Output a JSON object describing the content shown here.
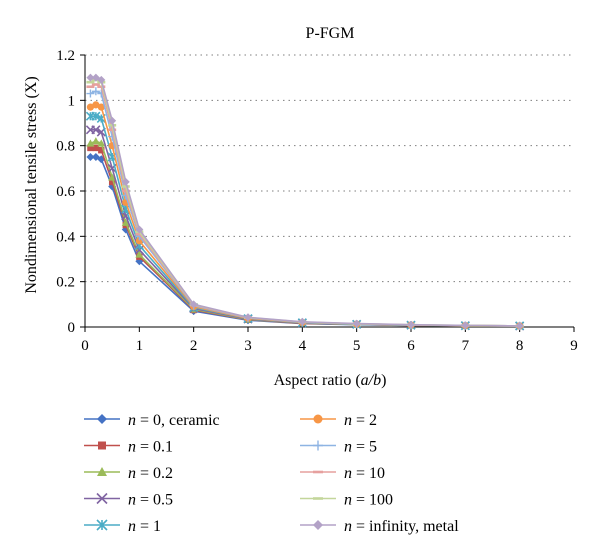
{
  "chart_data": {
    "type": "line",
    "title": "P-FGM",
    "xlabel_parts": [
      "Aspect ratio (",
      "a/b",
      ")"
    ],
    "ylabel": "Nondimensional tensile stress (X)",
    "xlim": [
      0,
      9
    ],
    "ylim": [
      0,
      1.2
    ],
    "xticks": [
      0,
      1,
      2,
      3,
      4,
      5,
      6,
      7,
      8,
      9
    ],
    "yticks": [
      0,
      0.2,
      0.4,
      0.6,
      0.8,
      1,
      1.2
    ],
    "xtick_labels": [
      "0",
      "1",
      "2",
      "3",
      "4",
      "5",
      "6",
      "7",
      "8",
      "9"
    ],
    "ytick_labels": [
      "0",
      "0.2",
      "0.4",
      "0.6",
      "0.8",
      "1",
      "1.2"
    ],
    "grid": "horizontal-dotted",
    "legend_position": "bottom",
    "x": [
      0.1,
      0.2,
      0.3,
      0.5,
      0.75,
      1,
      2,
      3,
      4,
      5,
      6,
      7,
      8
    ],
    "series": [
      {
        "name": "n = 0, ceramic",
        "italic_n": true,
        "suffix": " = 0, ceramic",
        "color": "#4472c4",
        "marker": "diamond",
        "values": [
          0.75,
          0.75,
          0.74,
          0.62,
          0.43,
          0.29,
          0.07,
          0.03,
          0.015,
          0.01,
          0.007,
          0.005,
          0.004
        ]
      },
      {
        "name": "n = 0.1",
        "italic_n": true,
        "suffix": " = 0.1",
        "color": "#c0504d",
        "marker": "square",
        "values": [
          0.79,
          0.79,
          0.78,
          0.64,
          0.45,
          0.31,
          0.075,
          0.032,
          0.016,
          0.011,
          0.007,
          0.005,
          0.004
        ]
      },
      {
        "name": "n = 0.2",
        "italic_n": true,
        "suffix": " = 0.2",
        "color": "#9bbb59",
        "marker": "triangle",
        "values": [
          0.81,
          0.82,
          0.81,
          0.66,
          0.46,
          0.32,
          0.078,
          0.033,
          0.017,
          0.011,
          0.008,
          0.005,
          0.004
        ]
      },
      {
        "name": "n = 0.5",
        "italic_n": true,
        "suffix": " = 0.5",
        "color": "#8064a2",
        "marker": "x",
        "values": [
          0.87,
          0.87,
          0.86,
          0.7,
          0.49,
          0.34,
          0.082,
          0.035,
          0.018,
          0.012,
          0.008,
          0.006,
          0.004
        ]
      },
      {
        "name": "n = 1",
        "italic_n": true,
        "suffix": " = 1",
        "color": "#4bacc6",
        "marker": "star",
        "values": [
          0.93,
          0.93,
          0.92,
          0.75,
          0.52,
          0.36,
          0.086,
          0.037,
          0.019,
          0.012,
          0.008,
          0.006,
          0.005
        ]
      },
      {
        "name": "n = 2",
        "italic_n": true,
        "suffix": " = 2",
        "color": "#f79646",
        "marker": "circle",
        "values": [
          0.97,
          0.98,
          0.97,
          0.8,
          0.55,
          0.38,
          0.09,
          0.038,
          0.02,
          0.013,
          0.009,
          0.006,
          0.005
        ]
      },
      {
        "name": "n = 5",
        "italic_n": true,
        "suffix": " = 5",
        "color": "#8eb4e3",
        "marker": "plus",
        "values": [
          1.03,
          1.04,
          1.03,
          0.84,
          0.58,
          0.4,
          0.094,
          0.04,
          0.021,
          0.013,
          0.009,
          0.006,
          0.005
        ]
      },
      {
        "name": "n = 10",
        "italic_n": true,
        "suffix": " = 10",
        "color": "#e6a09e",
        "marker": "dash",
        "values": [
          1.06,
          1.07,
          1.06,
          0.87,
          0.6,
          0.41,
          0.097,
          0.041,
          0.022,
          0.014,
          0.009,
          0.006,
          0.005
        ]
      },
      {
        "name": "n = 100",
        "italic_n": true,
        "suffix": " = 100",
        "color": "#c3d69b",
        "marker": "dash",
        "values": [
          1.08,
          1.09,
          1.08,
          0.89,
          0.62,
          0.42,
          0.099,
          0.042,
          0.022,
          0.014,
          0.01,
          0.007,
          0.005
        ]
      },
      {
        "name": "n = infinity, metal",
        "italic_n": true,
        "suffix": " = infinity, metal",
        "color": "#b3a2c7",
        "marker": "diamond",
        "values": [
          1.1,
          1.1,
          1.09,
          0.91,
          0.64,
          0.43,
          0.1,
          0.043,
          0.023,
          0.015,
          0.01,
          0.007,
          0.005
        ]
      }
    ]
  }
}
